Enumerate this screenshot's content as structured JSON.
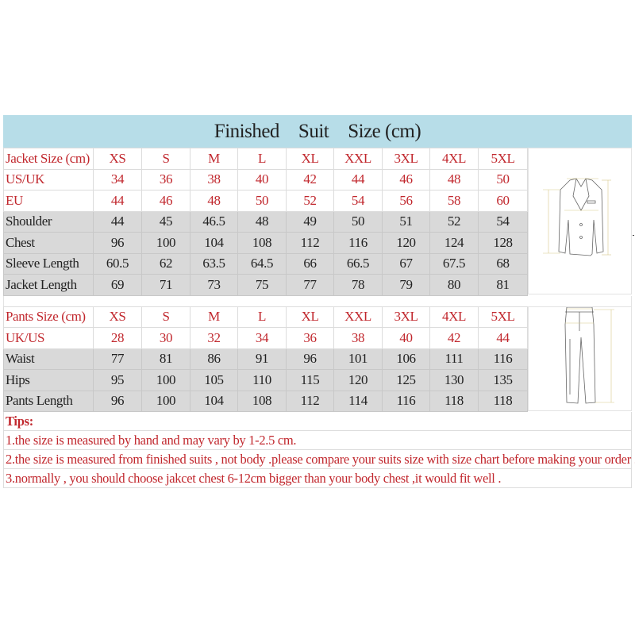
{
  "title": {
    "words": [
      "Finished",
      "Suit",
      "Size (cm)"
    ]
  },
  "sizes": [
    "XS",
    "S",
    "M",
    "L",
    "XL",
    "XXL",
    "3XL",
    "4XL",
    "5XL"
  ],
  "jacket": {
    "header": "Jacket Size (cm)",
    "rows": [
      {
        "label": "US/UK",
        "values": [
          "34",
          "36",
          "38",
          "40",
          "42",
          "44",
          "46",
          "48",
          "50"
        ],
        "style": "red"
      },
      {
        "label": "EU",
        "values": [
          "44",
          "46",
          "48",
          "50",
          "52",
          "54",
          "56",
          "58",
          "60"
        ],
        "style": "red"
      },
      {
        "label": "Shoulder",
        "values": [
          "44",
          "45",
          "46.5",
          "48",
          "49",
          "50",
          "51",
          "52",
          "54"
        ],
        "style": "gray"
      },
      {
        "label": "Chest",
        "values": [
          "96",
          "100",
          "104",
          "108",
          "112",
          "116",
          "120",
          "124",
          "128"
        ],
        "style": "gray"
      },
      {
        "label": "Sleeve Length",
        "values": [
          "60.5",
          "62",
          "63.5",
          "64.5",
          "66",
          "66.5",
          "67",
          "67.5",
          "68"
        ],
        "style": "gray"
      },
      {
        "label": "Jacket Length",
        "values": [
          "69",
          "71",
          "73",
          "75",
          "77",
          "78",
          "79",
          "80",
          "81"
        ],
        "style": "gray"
      }
    ],
    "diagram_icon": "jacket-measurement-diagram"
  },
  "pants": {
    "header": "Pants Size (cm)",
    "rows": [
      {
        "label": "UK/US",
        "values": [
          "28",
          "30",
          "32",
          "34",
          "36",
          "38",
          "40",
          "42",
          "44"
        ],
        "style": "red"
      },
      {
        "label": "Waist",
        "values": [
          "77",
          "81",
          "86",
          "91",
          "96",
          "101",
          "106",
          "111",
          "116"
        ],
        "style": "gray"
      },
      {
        "label": "Hips",
        "values": [
          "95",
          "100",
          "105",
          "110",
          "115",
          "120",
          "125",
          "130",
          "135"
        ],
        "style": "gray"
      },
      {
        "label": "Pants Length",
        "values": [
          "96",
          "100",
          "104",
          "108",
          "112",
          "114",
          "116",
          "118",
          "118"
        ],
        "style": "gray"
      }
    ],
    "diagram_icon": "pants-measurement-diagram"
  },
  "tips": {
    "heading": "Tips:",
    "items": [
      "1.the size is measured by hand and may vary by 1-2.5 cm.",
      "2.the size is measured from finished suits , not body .please compare your suits size with size chart before making your order .",
      "3.normally , you should choose jakcet chest 6-12cm bigger than your body chest ,it would fit well ."
    ]
  },
  "colors": {
    "header_bg": "#b7dde8",
    "red_text": "#c1272d",
    "gray_row": "#d9d9d9"
  }
}
